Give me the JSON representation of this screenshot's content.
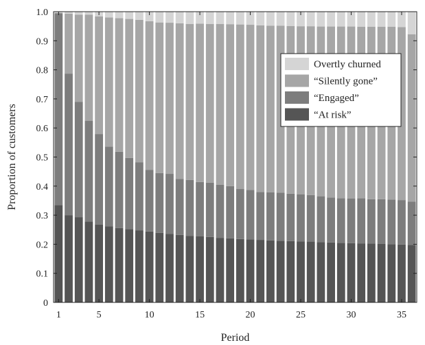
{
  "chart_data": {
    "type": "bar",
    "stacked": true,
    "title": "",
    "xlabel": "Period",
    "ylabel": "Proportion of customers",
    "xlim": [
      1,
      36
    ],
    "ylim": [
      0,
      1.0
    ],
    "grid": false,
    "legend_position": "top-right",
    "x": [
      1,
      2,
      3,
      4,
      5,
      6,
      7,
      8,
      9,
      10,
      11,
      12,
      13,
      14,
      15,
      16,
      17,
      18,
      19,
      20,
      21,
      22,
      23,
      24,
      25,
      26,
      27,
      28,
      29,
      30,
      31,
      32,
      33,
      34,
      35,
      36
    ],
    "x_ticks": [
      1,
      5,
      10,
      15,
      20,
      25,
      30,
      35
    ],
    "y_ticks": [
      "0",
      "0.1",
      "0.2",
      "0.3",
      "0.4",
      "0.5",
      "0.6",
      "0.7",
      "0.8",
      "0.9",
      "1.0"
    ],
    "series": [
      {
        "name": "“At risk”",
        "color": "#555555",
        "values": [
          0.335,
          0.3,
          0.293,
          0.278,
          0.268,
          0.262,
          0.256,
          0.252,
          0.248,
          0.244,
          0.239,
          0.236,
          0.232,
          0.229,
          0.227,
          0.225,
          0.222,
          0.22,
          0.218,
          0.217,
          0.215,
          0.213,
          0.212,
          0.211,
          0.21,
          0.209,
          0.207,
          0.206,
          0.205,
          0.204,
          0.203,
          0.202,
          0.201,
          0.2,
          0.199,
          0.198
        ]
      },
      {
        "name": "“Engaged”",
        "color": "#7d7d7d",
        "values": [
          0.66,
          0.487,
          0.397,
          0.347,
          0.311,
          0.274,
          0.262,
          0.245,
          0.234,
          0.212,
          0.206,
          0.206,
          0.193,
          0.192,
          0.187,
          0.187,
          0.183,
          0.18,
          0.172,
          0.17,
          0.165,
          0.166,
          0.165,
          0.163,
          0.162,
          0.16,
          0.158,
          0.155,
          0.153,
          0.153,
          0.155,
          0.153,
          0.154,
          0.154,
          0.153,
          0.149
        ]
      },
      {
        "name": "“Silently gone”",
        "color": "#a6a6a6",
        "values": [
          0.0,
          0.206,
          0.3,
          0.365,
          0.405,
          0.444,
          0.46,
          0.478,
          0.49,
          0.511,
          0.518,
          0.52,
          0.535,
          0.537,
          0.545,
          0.546,
          0.553,
          0.557,
          0.566,
          0.568,
          0.573,
          0.573,
          0.575,
          0.577,
          0.578,
          0.581,
          0.584,
          0.588,
          0.591,
          0.592,
          0.59,
          0.593,
          0.593,
          0.594,
          0.595,
          0.575
        ]
      },
      {
        "name": "Overtly churned",
        "color": "#d5d5d5",
        "values": [
          0.005,
          0.007,
          0.01,
          0.01,
          0.016,
          0.02,
          0.022,
          0.025,
          0.028,
          0.033,
          0.037,
          0.038,
          0.04,
          0.042,
          0.041,
          0.042,
          0.042,
          0.043,
          0.044,
          0.045,
          0.047,
          0.048,
          0.048,
          0.049,
          0.05,
          0.05,
          0.051,
          0.051,
          0.051,
          0.051,
          0.052,
          0.052,
          0.052,
          0.052,
          0.053,
          0.078
        ]
      }
    ],
    "legend_order": [
      "Overtly churned",
      "“Silently gone”",
      "“Engaged”",
      "“At risk”"
    ]
  }
}
